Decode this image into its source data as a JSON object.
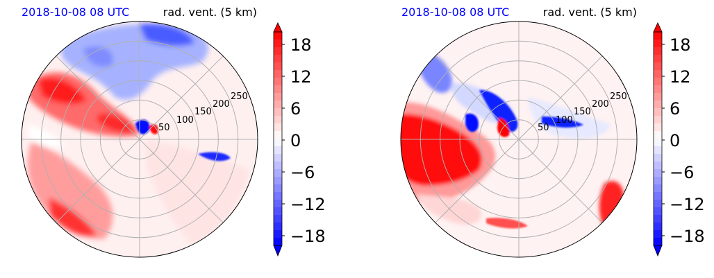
{
  "chart_data": [
    {
      "type": "heatmap",
      "projection": "polar",
      "title_left": "2018-10-08 08 UTC",
      "title_right": "rad. vent. (5 km)",
      "rlim": [
        0,
        300
      ],
      "r_ticks": [
        "50",
        "100",
        "150",
        "200",
        "250"
      ],
      "grid": true,
      "colormap": "bwr",
      "colorbar": {
        "vmin": -21,
        "vmax": 21,
        "ticks": [
          "18",
          "12",
          "6",
          "0",
          "−6",
          "−12",
          "−18"
        ],
        "extend": "both"
      },
      "regions": [
        {
          "sign": "negative",
          "location": "north / north-west",
          "approx_value": -12
        },
        {
          "sign": "positive",
          "location": "west / north-west band",
          "approx_value": 18
        },
        {
          "sign": "positive",
          "location": "south-west",
          "approx_value": 18
        },
        {
          "sign": "positive",
          "location": "east / south-east (weak)",
          "approx_value": 2
        }
      ]
    },
    {
      "type": "heatmap",
      "projection": "polar",
      "title_left": "2018-10-08 08 UTC",
      "title_right": "rad. vent. (5 km)",
      "rlim": [
        0,
        300
      ],
      "r_ticks": [
        "50",
        "100",
        "150",
        "200",
        "250"
      ],
      "grid": true,
      "colormap": "bwr",
      "colorbar": {
        "vmin": -21,
        "vmax": 21,
        "ticks": [
          "18",
          "12",
          "6",
          "0",
          "−6",
          "−12",
          "−18"
        ],
        "extend": "both"
      },
      "regions": [
        {
          "sign": "positive",
          "location": "west",
          "approx_value": 20
        },
        {
          "sign": "negative",
          "location": "north-west",
          "approx_value": -10
        },
        {
          "sign": "negative",
          "location": "near center, north-west",
          "approx_value": -20
        },
        {
          "sign": "positive",
          "location": "south-east edge",
          "approx_value": 16
        },
        {
          "sign": "positive",
          "location": "east (weak)",
          "approx_value": 1
        }
      ]
    }
  ]
}
